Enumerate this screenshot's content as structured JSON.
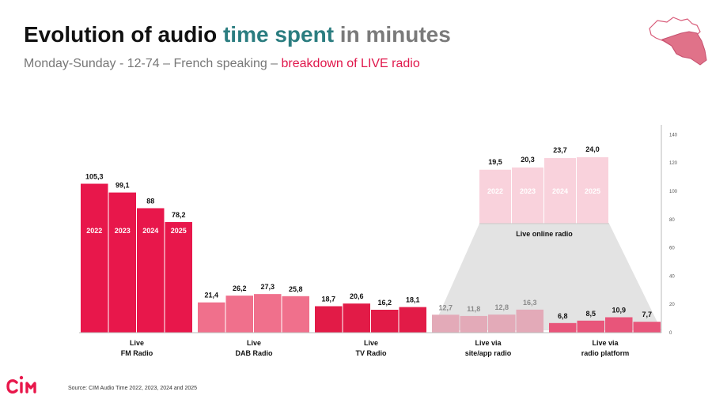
{
  "title": {
    "part1": "Evolution of audio ",
    "part2": "time spent",
    "part3": " in minutes"
  },
  "subtitle": {
    "main": "Monday-Sunday - 12-74 – French speaking – ",
    "accent": "breakdown of LIVE radio"
  },
  "source": "Source: CIM Audio Time 2022, 2023, 2024 and 2025",
  "logo_text": "CIM",
  "colors": {
    "fm": "#e8174b",
    "dab": "#f0708c",
    "tv": "#e21b47",
    "site_app": "#e3aab8",
    "platform": "#e8557a",
    "online": "#f9d2dc",
    "funnel": "#e3e3e3",
    "map": "#e07289"
  },
  "chart_data": {
    "type": "bar",
    "ylim": [
      0,
      140
    ],
    "yticks": [
      0,
      20,
      40,
      60,
      80,
      100,
      120,
      140
    ],
    "years": [
      "2022",
      "2023",
      "2024",
      "2025"
    ],
    "groups": [
      {
        "label": [
          "Live",
          "FM Radio"
        ],
        "values": [
          105.3,
          99.1,
          88,
          78.2
        ],
        "value_labels": [
          "105,3",
          "99,1",
          "88",
          "78,2"
        ],
        "year_labels": true
      },
      {
        "label": [
          "Live",
          "DAB Radio"
        ],
        "values": [
          21.4,
          26.2,
          27.3,
          25.8
        ],
        "value_labels": [
          "21,4",
          "26,2",
          "27,3",
          "25,8"
        ],
        "year_labels": false
      },
      {
        "label": [
          "Live",
          "TV Radio"
        ],
        "values": [
          18.7,
          20.6,
          16.2,
          18.1
        ],
        "value_labels": [
          "18,7",
          "20,6",
          "16,2",
          "18,1"
        ],
        "year_labels": false
      },
      {
        "label": [
          "Live via",
          "site/app radio"
        ],
        "values": [
          12.7,
          11.8,
          12.8,
          16.3
        ],
        "value_labels": [
          "12,7",
          "11,8",
          "12,8",
          "16,3"
        ],
        "year_labels": false
      },
      {
        "label": [
          "Live via",
          "radio platform"
        ],
        "values": [
          6.8,
          8.5,
          10.9,
          7.7
        ],
        "value_labels": [
          "6,8",
          "8,5",
          "10,9",
          "7,7"
        ],
        "year_labels": false
      }
    ],
    "online": {
      "label": "Live online radio",
      "values": [
        19.5,
        20.3,
        23.7,
        24.0
      ],
      "value_labels": [
        "19,5",
        "20,3",
        "23,7",
        "24,0"
      ],
      "year_labels": true
    }
  }
}
